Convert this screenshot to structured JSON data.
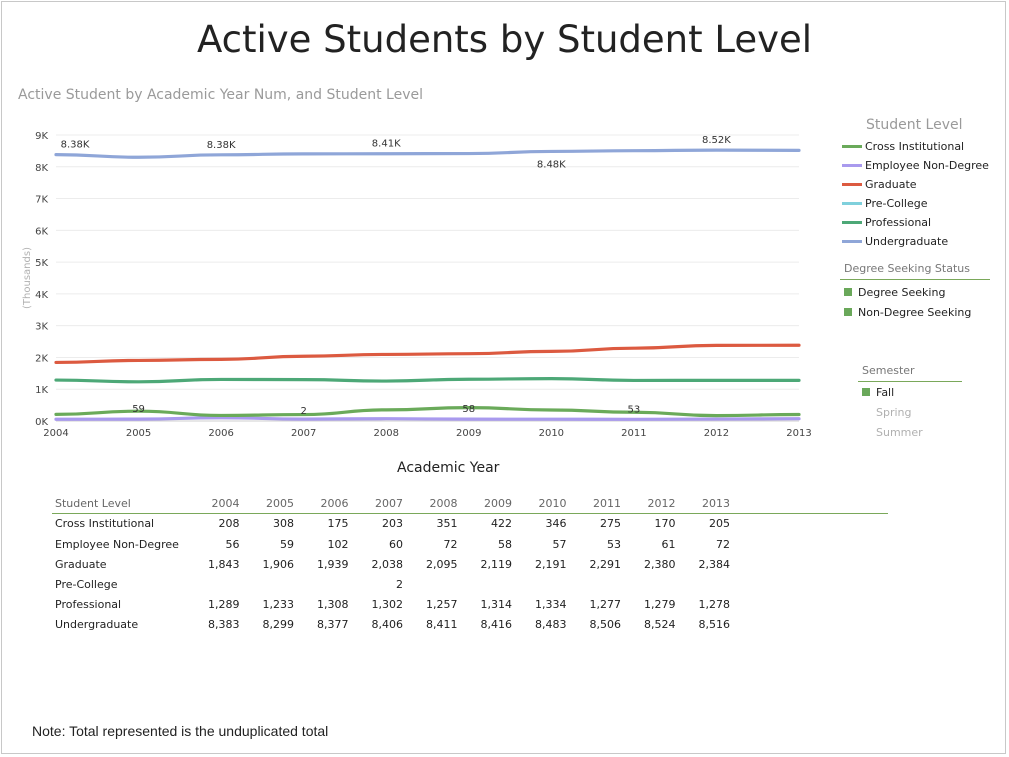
{
  "title": "Active Students by Student Level",
  "subtitle": "Active Student by Academic Year Num, and Student Level",
  "x_axis_title": "Academic Year",
  "y_axis_title": "(Thousands)",
  "note": "Note: Total represented is the unduplicated total",
  "legend": {
    "title": "Student Level",
    "items": [
      {
        "label": "Cross Institutional",
        "color": "#6aaa5a"
      },
      {
        "label": "Employee Non-Degree",
        "color": "#a99aee"
      },
      {
        "label": "Graduate",
        "color": "#dc5a40"
      },
      {
        "label": "Pre-College",
        "color": "#7fd0dc"
      },
      {
        "label": "Professional",
        "color": "#4da877"
      },
      {
        "label": "Undergraduate",
        "color": "#8fa6d8"
      }
    ]
  },
  "filters": {
    "degree": {
      "title": "Degree Seeking Status",
      "items": [
        {
          "label": "Degree Seeking",
          "selected": true
        },
        {
          "label": "Non-Degree Seeking",
          "selected": true
        }
      ]
    },
    "semester": {
      "title": "Semester",
      "items": [
        {
          "label": "Fall",
          "selected": true
        },
        {
          "label": "Spring",
          "selected": false
        },
        {
          "label": "Summer",
          "selected": false
        }
      ]
    }
  },
  "table": {
    "header": [
      "Student Level",
      "2004",
      "2005",
      "2006",
      "2007",
      "2008",
      "2009",
      "2010",
      "2011",
      "2012",
      "2013"
    ],
    "rows": [
      [
        "Cross Institutional",
        "208",
        "308",
        "175",
        "203",
        "351",
        "422",
        "346",
        "275",
        "170",
        "205"
      ],
      [
        "Employee Non-Degree",
        "56",
        "59",
        "102",
        "60",
        "72",
        "58",
        "57",
        "53",
        "61",
        "72"
      ],
      [
        "Graduate",
        "1,843",
        "1,906",
        "1,939",
        "2,038",
        "2,095",
        "2,119",
        "2,191",
        "2,291",
        "2,380",
        "2,384"
      ],
      [
        "Pre-College",
        "",
        "",
        "",
        "2",
        "",
        "",
        "",
        "",
        "",
        ""
      ],
      [
        "Professional",
        "1,289",
        "1,233",
        "1,308",
        "1,302",
        "1,257",
        "1,314",
        "1,334",
        "1,277",
        "1,279",
        "1,278"
      ],
      [
        "Undergraduate",
        "8,383",
        "8,299",
        "8,377",
        "8,406",
        "8,411",
        "8,416",
        "8,483",
        "8,506",
        "8,524",
        "8,516"
      ]
    ]
  },
  "chart_data": {
    "type": "line",
    "x": [
      2004,
      2005,
      2006,
      2007,
      2008,
      2009,
      2010,
      2011,
      2012,
      2013
    ],
    "ylim": [
      0,
      9000
    ],
    "yticks": [
      "0K",
      "1K",
      "2K",
      "3K",
      "4K",
      "5K",
      "6K",
      "7K",
      "8K",
      "9K"
    ],
    "grid": true,
    "legend_position": "right",
    "series": [
      {
        "name": "Cross Institutional",
        "color": "#6aaa5a",
        "values": [
          208,
          308,
          175,
          203,
          351,
          422,
          346,
          275,
          170,
          205
        ]
      },
      {
        "name": "Employee Non-Degree",
        "color": "#a99aee",
        "values": [
          56,
          59,
          102,
          60,
          72,
          58,
          57,
          53,
          61,
          72
        ]
      },
      {
        "name": "Graduate",
        "color": "#dc5a40",
        "values": [
          1843,
          1906,
          1939,
          2038,
          2095,
          2119,
          2191,
          2291,
          2380,
          2384
        ]
      },
      {
        "name": "Pre-College",
        "color": "#7fd0dc",
        "values": [
          null,
          null,
          null,
          2,
          null,
          null,
          null,
          null,
          null,
          null
        ]
      },
      {
        "name": "Professional",
        "color": "#4da877",
        "values": [
          1289,
          1233,
          1308,
          1302,
          1257,
          1314,
          1334,
          1277,
          1279,
          1278
        ]
      },
      {
        "name": "Undergraduate",
        "color": "#8fa6d8",
        "values": [
          8383,
          8299,
          8377,
          8406,
          8411,
          8416,
          8483,
          8506,
          8524,
          8516
        ]
      }
    ],
    "data_labels": [
      {
        "x": 2004,
        "text": "8.38K",
        "value": 8383
      },
      {
        "x": 2006,
        "text": "8.38K",
        "value": 8377
      },
      {
        "x": 2008,
        "text": "8.41K",
        "value": 8411
      },
      {
        "x": 2010,
        "text": "8.48K",
        "value": 8483
      },
      {
        "x": 2012,
        "text": "8.52K",
        "value": 8524
      },
      {
        "x": 2005,
        "text": "59",
        "value": 59
      },
      {
        "x": 2007,
        "text": "2",
        "value": 2
      },
      {
        "x": 2009,
        "text": "58",
        "value": 58
      },
      {
        "x": 2011,
        "text": "53",
        "value": 53
      }
    ]
  }
}
